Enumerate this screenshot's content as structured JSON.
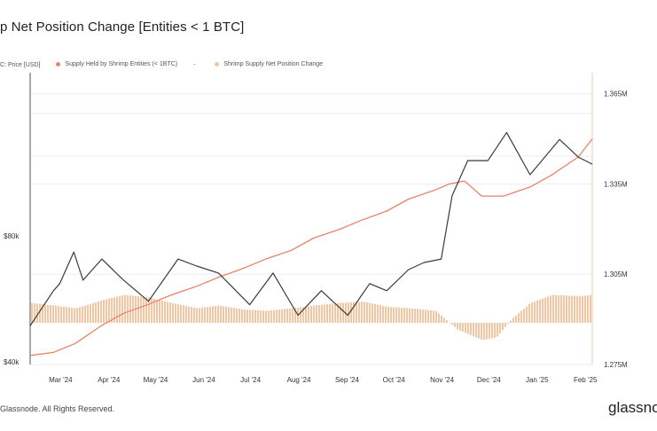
{
  "title": "p Net Position Change [Entities < 1 BTC]",
  "legend": [
    {
      "label": "C: Price [USD]",
      "color": "#3a3a3a"
    },
    {
      "label": "Supply Held by Shrimp Entities (< 1BTC)",
      "color": "#e9826a"
    },
    {
      "label": "-",
      "color": "#555555"
    },
    {
      "label": "Shrimp Supply Net Position Change",
      "color": "#f3c6a3"
    }
  ],
  "copyright": "Glassnode. All Rights Reserved.",
  "brand": "glassnode",
  "colors": {
    "price": "#3a3a3a",
    "supply": "#e9826a",
    "bars": "#f3c6a3",
    "grid": "#eeeeee",
    "axis": "#f0c7a8"
  },
  "chart_data": {
    "type": "line",
    "x_tick_labels": [
      "Mar '24",
      "Apr '24",
      "May '24",
      "Jun '24",
      "Jul '24",
      "Aug '24",
      "Sep '24",
      "Oct '24",
      "Nov '24",
      "Dec '24",
      "Jan '25",
      "Feb '25"
    ],
    "left_axis": {
      "tick_labels": [
        "$40k",
        "$80k"
      ],
      "range": [
        40000,
        123000
      ]
    },
    "right_axis": {
      "tick_labels": [
        "1.275M",
        "1.305M",
        "1.335M",
        "1.365M"
      ],
      "range": [
        1275000,
        1372000
      ]
    },
    "series": [
      {
        "name": "Supply Held by Shrimp Entities (< 1BTC)",
        "axis": "right",
        "x": [
          "2024-02-15",
          "2024-03-01",
          "2024-03-15",
          "2024-04-01",
          "2024-04-15",
          "2024-05-01",
          "2024-05-15",
          "2024-06-01",
          "2024-06-15",
          "2024-07-01",
          "2024-07-15",
          "2024-08-01",
          "2024-08-15",
          "2024-09-01",
          "2024-09-15",
          "2024-10-01",
          "2024-10-15",
          "2024-11-01",
          "2024-11-10",
          "2024-11-20",
          "2024-12-01",
          "2024-12-15",
          "2025-01-01",
          "2025-01-15",
          "2025-02-01",
          "2025-02-10"
        ],
        "values": [
          1278000,
          1279000,
          1282000,
          1288000,
          1292000,
          1295000,
          1298000,
          1301000,
          1304000,
          1307000,
          1310000,
          1313000,
          1317000,
          1320000,
          1323000,
          1326000,
          1330000,
          1333000,
          1335000,
          1336000,
          1331000,
          1331000,
          1334000,
          1338000,
          1344000,
          1350000
        ]
      },
      {
        "name": "Price [USD]",
        "axis": "left",
        "x": [
          "2024-02-15",
          "2024-03-01",
          "2024-03-05",
          "2024-03-14",
          "2024-03-20",
          "2024-04-01",
          "2024-04-15",
          "2024-05-01",
          "2024-05-20",
          "2024-06-01",
          "2024-06-15",
          "2024-07-05",
          "2024-07-20",
          "2024-08-05",
          "2024-08-20",
          "2024-09-06",
          "2024-09-20",
          "2024-10-01",
          "2024-10-15",
          "2024-10-25",
          "2024-11-05",
          "2024-11-12",
          "2024-11-22",
          "2024-12-05",
          "2024-12-17",
          "2025-01-01",
          "2025-01-20",
          "2025-02-01",
          "2025-02-10"
        ],
        "values": [
          51000,
          61000,
          63000,
          72000,
          64000,
          70000,
          64000,
          58000,
          70000,
          68000,
          66000,
          57000,
          66000,
          54000,
          61000,
          54000,
          63000,
          61000,
          67000,
          69000,
          70000,
          88000,
          98000,
          98000,
          106000,
          94000,
          104000,
          99000,
          97000
        ]
      },
      {
        "name": "Shrimp Supply Net Position Change",
        "axis": "bars",
        "x": [
          "2024-02-15",
          "2024-03-01",
          "2024-03-15",
          "2024-04-01",
          "2024-04-15",
          "2024-05-01",
          "2024-05-15",
          "2024-06-01",
          "2024-06-15",
          "2024-07-01",
          "2024-07-15",
          "2024-08-01",
          "2024-08-15",
          "2024-09-01",
          "2024-09-15",
          "2024-10-01",
          "2024-10-15",
          "2024-11-01",
          "2024-11-15",
          "2024-12-01",
          "2024-12-10",
          "2024-12-20",
          "2025-01-01",
          "2025-01-15",
          "2025-02-01",
          "2025-02-10"
        ],
        "values": [
          7500,
          6500,
          5500,
          8500,
          10500,
          9500,
          7500,
          5500,
          6500,
          5000,
          4500,
          5500,
          6500,
          7500,
          8000,
          6000,
          5500,
          4500,
          -2500,
          -6500,
          -5500,
          1500,
          7500,
          10500,
          10000,
          10500
        ]
      }
    ]
  }
}
